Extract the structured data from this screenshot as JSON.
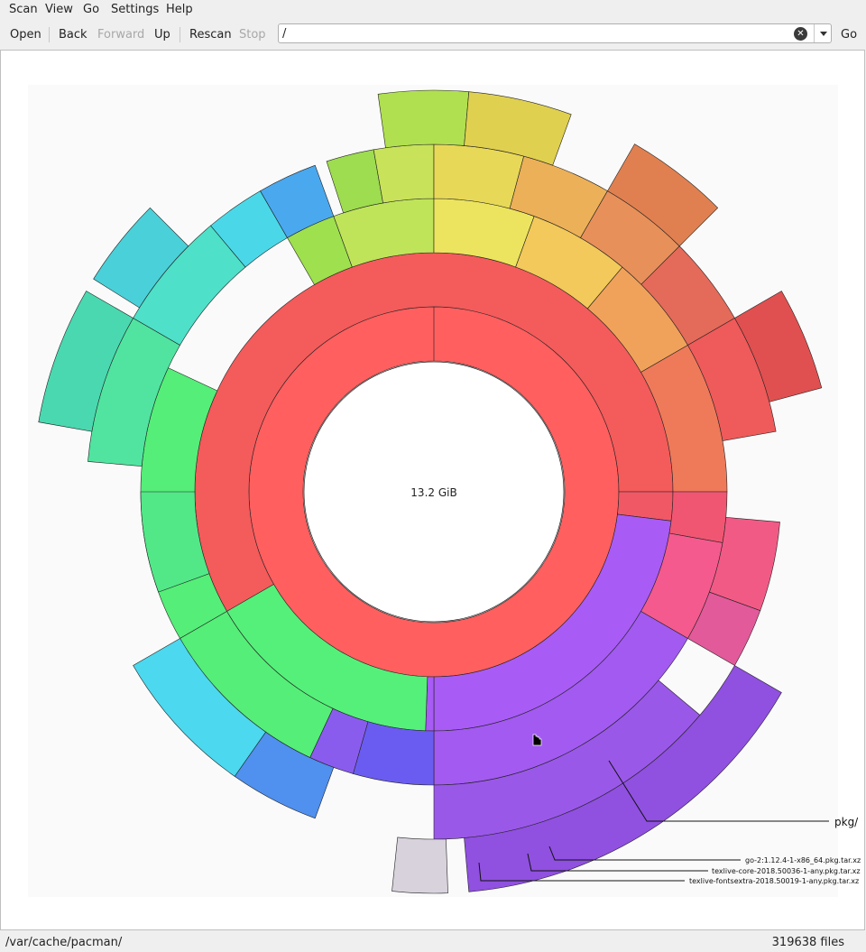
{
  "menu": [
    "Scan",
    "View",
    "Go",
    "Settings",
    "Help"
  ],
  "toolbar": {
    "open": "Open",
    "back": "Back",
    "forward": "Forward",
    "up": "Up",
    "rescan": "Rescan",
    "stop": "Stop",
    "go": "Go"
  },
  "location": {
    "value": "/"
  },
  "center_label": "13.2 GiB",
  "labels": {
    "pkg": "pkg/",
    "go": "go-2:1.12.4-1-x86_64.pkg.tar.xz",
    "texlive_core": "texlive-core-2018.50036-1-any.pkg.tar.xz",
    "texlive_fontsextra": "texlive-fontsextra-2018.50019-1-any.pkg.tar.xz"
  },
  "status": {
    "path": "/var/cache/pacman/",
    "files": "319638 files"
  },
  "colors": {
    "root_ring": "#ff5f5f",
    "purple": "#a95bf5",
    "green": "#55f07a",
    "blue": "#6a5cf0",
    "grey": "#d8d2dc"
  }
}
